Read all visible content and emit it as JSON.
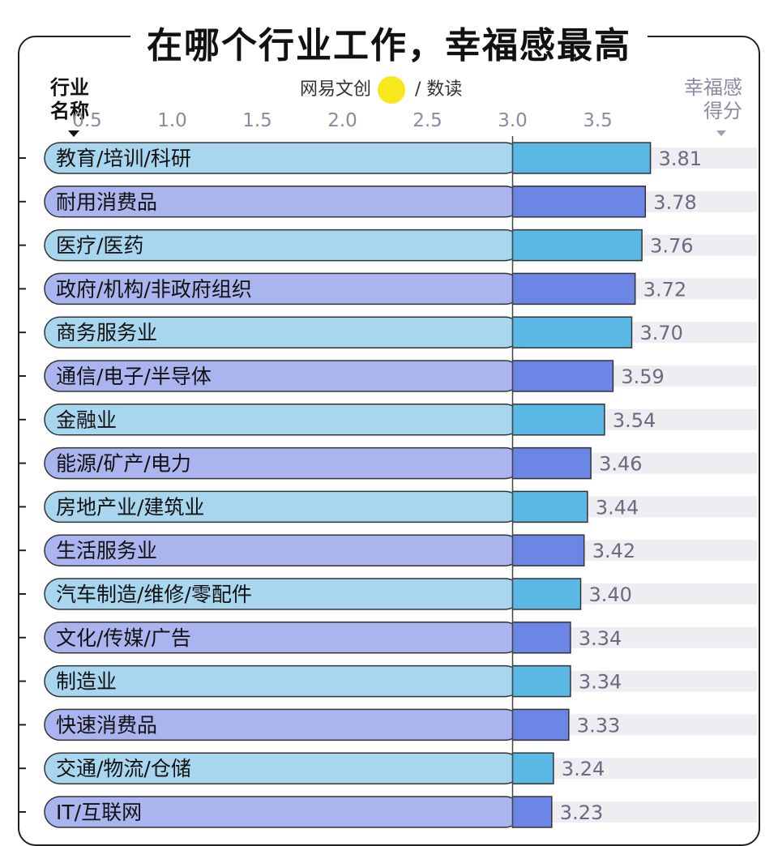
{
  "page": {
    "title": "在哪个行业工作，幸福感最高",
    "industry_header_line1": "行业",
    "industry_header_line2": "名称",
    "score_header_line1": "幸福感",
    "score_header_line2": "得分",
    "brand": "网易文创",
    "brand_suffix": "数读",
    "brand_separator": "/"
  },
  "colors": {
    "bar_light_blue": "#a8d6ee",
    "bar_light_purple": "#aab4ee",
    "bar_dark_blue": "#5ab8e4",
    "bar_dark_purple": "#6c86e6",
    "track_gray": "#eeeef2",
    "axis_text": "#8a8aa2"
  },
  "chart_data": {
    "type": "bar",
    "orientation": "horizontal",
    "xlim": [
      0.25,
      3.81
    ],
    "ticks": [
      "0.5",
      "1.0",
      "1.5",
      "2.0",
      "2.5",
      "3.0",
      "3.5"
    ],
    "tick_values": [
      0.5,
      1.0,
      1.5,
      2.0,
      2.5,
      3.0,
      3.5
    ],
    "reference_line": 3.0,
    "categories": [
      "教育/培训/科研",
      "耐用消费品",
      "医疗/医药",
      "政府/机构/非政府组织",
      "商务服务业",
      "通信/电子/半导体",
      "金融业",
      "能源/矿产/电力",
      "房地产业/建筑业",
      "生活服务业",
      "汽车制造/维修/零配件",
      "文化/传媒/广告",
      "制造业",
      "快速消费品",
      "交通/物流/仓储",
      "IT/互联网"
    ],
    "values": [
      3.81,
      3.78,
      3.76,
      3.72,
      3.7,
      3.59,
      3.54,
      3.46,
      3.44,
      3.42,
      3.4,
      3.34,
      3.34,
      3.33,
      3.24,
      3.23
    ],
    "value_labels": [
      "3.81",
      "3.78",
      "3.76",
      "3.72",
      "3.70",
      "3.59",
      "3.54",
      "3.46",
      "3.44",
      "3.42",
      "3.40",
      "3.34",
      "3.34",
      "3.33",
      "3.24",
      "3.23"
    ]
  }
}
